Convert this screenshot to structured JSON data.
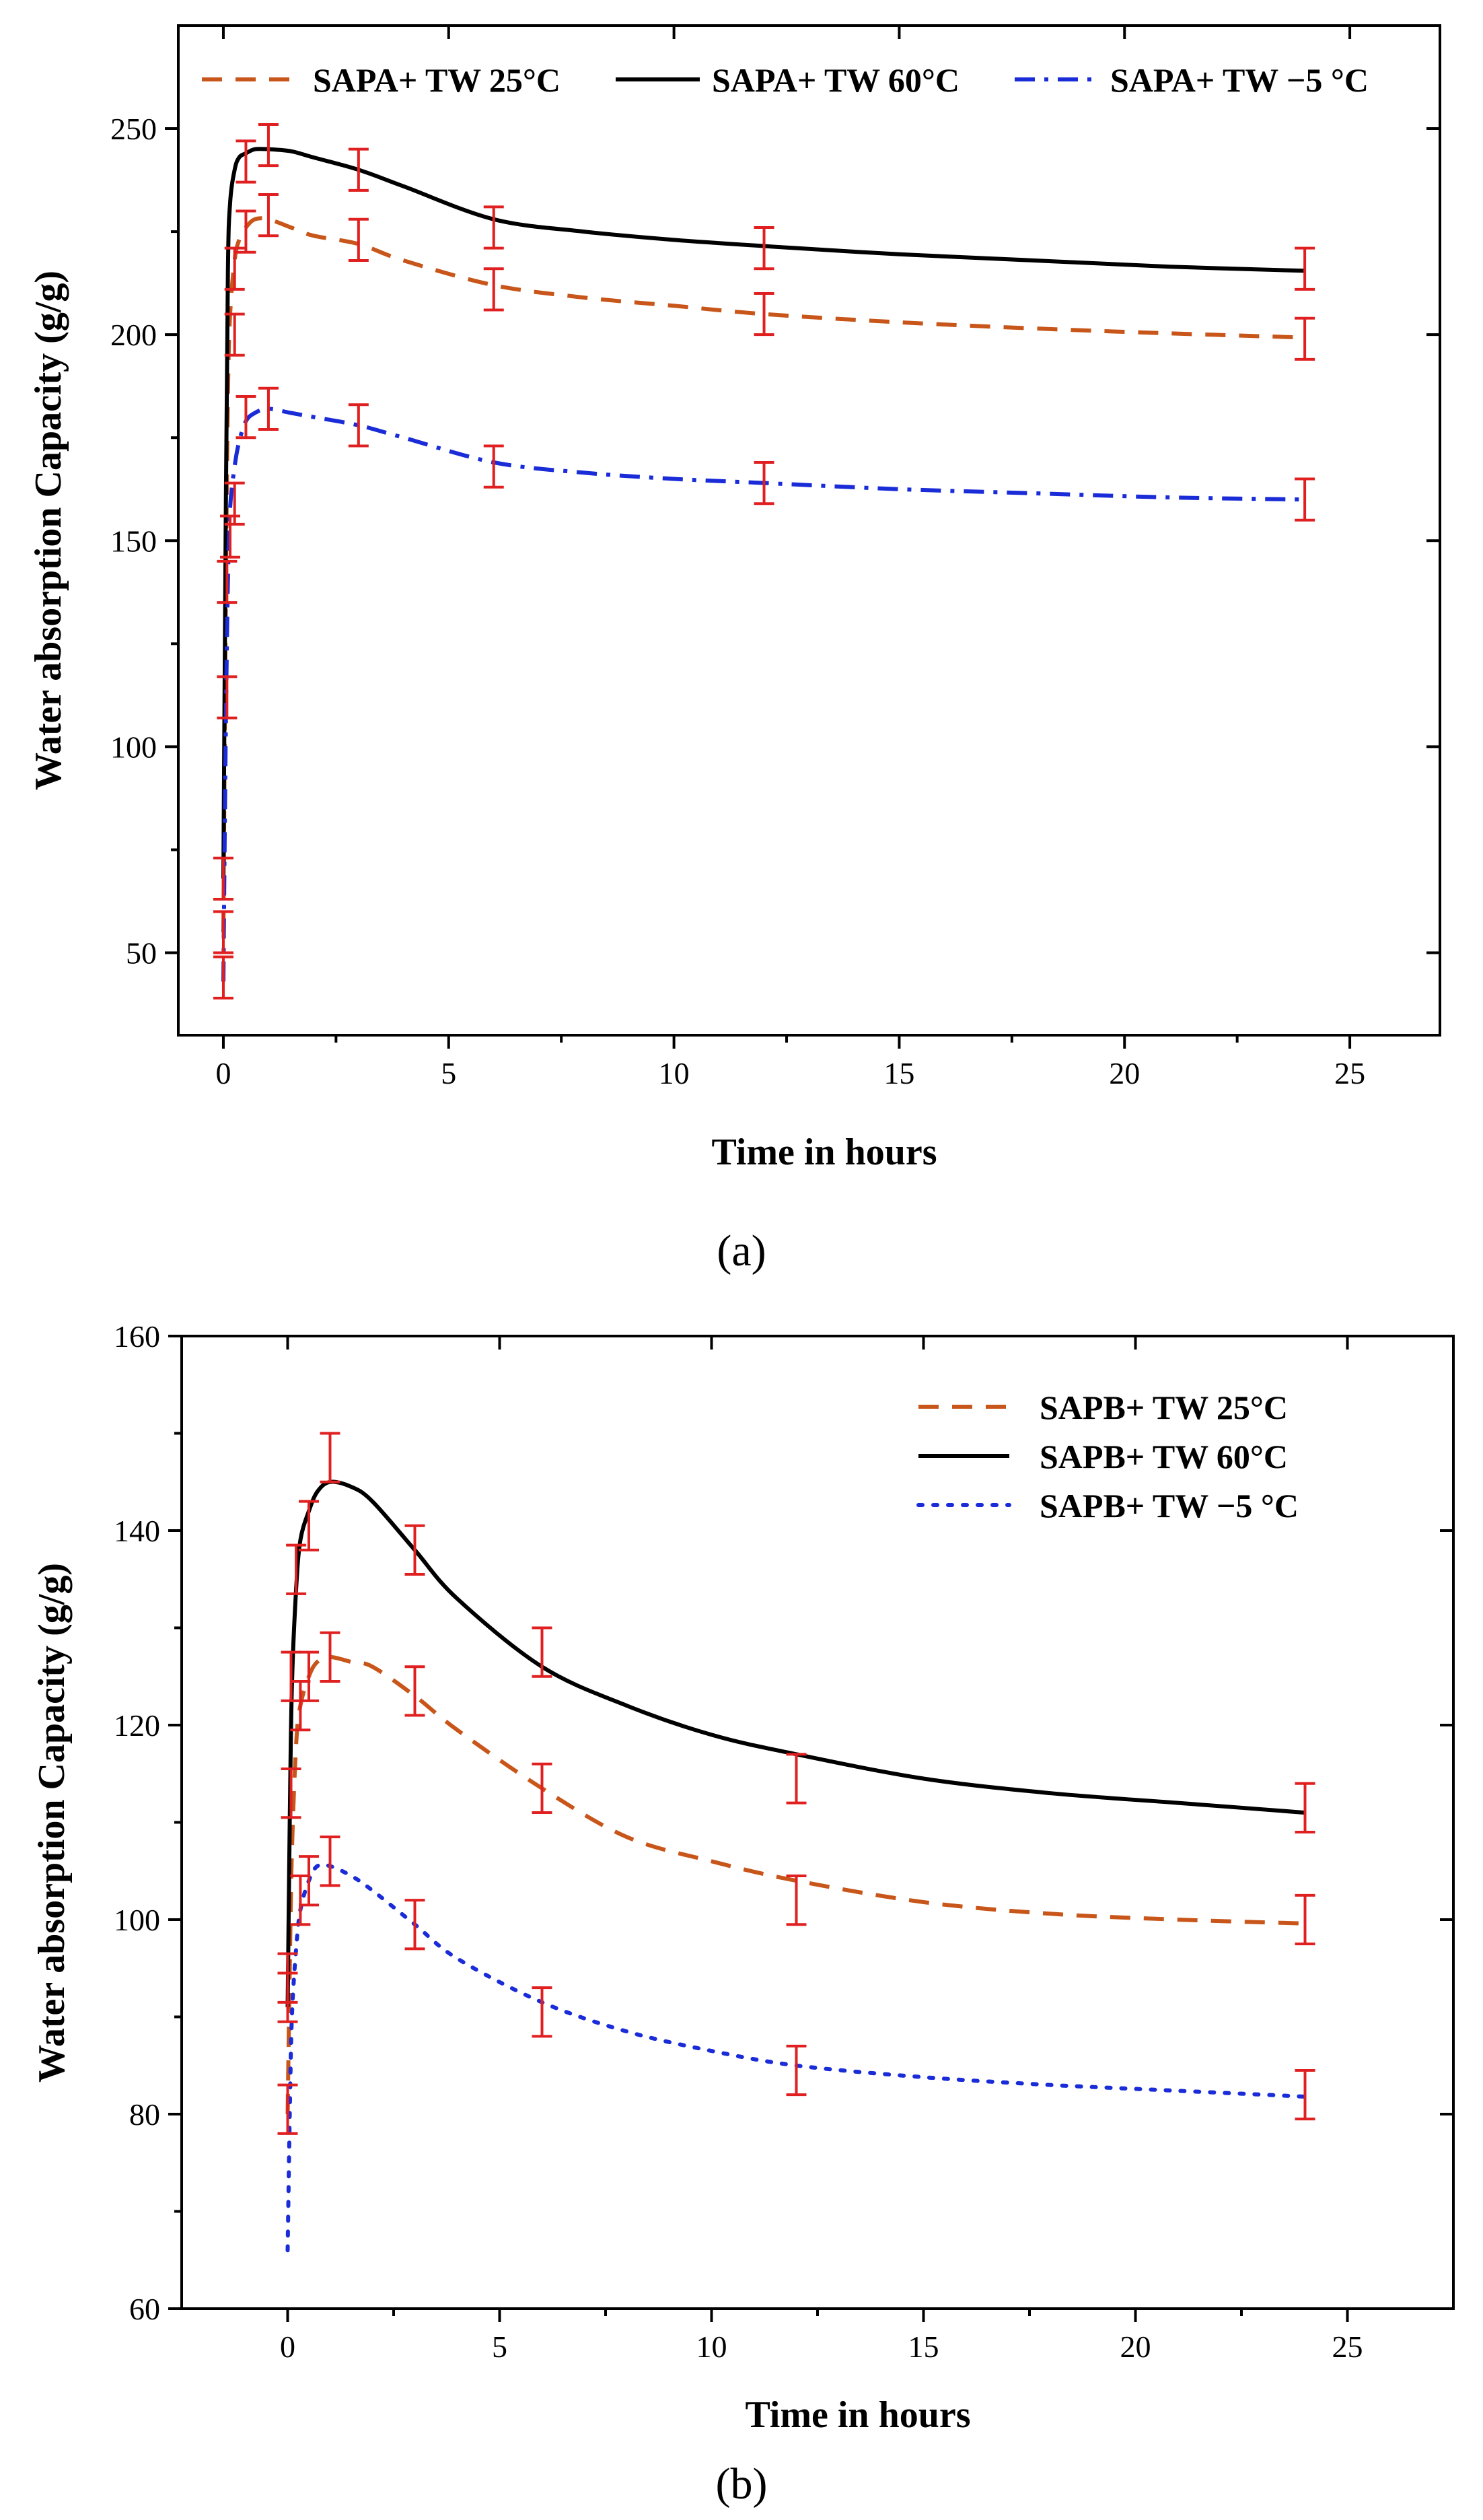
{
  "chart_data": [
    {
      "type": "line",
      "panel": "a",
      "caption": "(a)",
      "xlabel": "Time in hours",
      "ylabel": "Water absorption Capacity (g/g)",
      "xlim": [
        -1,
        27
      ],
      "ylim": [
        30,
        275
      ],
      "xticks": [
        0,
        5,
        10,
        15,
        20,
        25
      ],
      "yticks": [
        50,
        100,
        150,
        200,
        250
      ],
      "legend_position": "top",
      "error_color": "#e02020",
      "series": [
        {
          "name": "SAPA+ TW 25°C",
          "style": "dashed",
          "color": "#c8561a",
          "x": [
            0,
            0.05,
            0.1,
            0.15,
            0.25,
            0.35,
            0.5,
            0.7,
            1,
            1.5,
            2,
            3,
            4,
            6,
            8,
            10,
            12,
            15,
            18,
            21,
            24
          ],
          "y": [
            55,
            130,
            185,
            205,
            218,
            223,
            226,
            228,
            228,
            226,
            224,
            222,
            218,
            212,
            209,
            207,
            205,
            203,
            201.5,
            200.3,
            199.3
          ]
        },
        {
          "name": "SAPA+ TW 60°C",
          "style": "solid",
          "color": "#000000",
          "x": [
            0,
            0.05,
            0.1,
            0.15,
            0.25,
            0.35,
            0.5,
            0.7,
            1,
            1.5,
            2,
            3,
            4,
            6,
            8,
            10,
            12,
            15,
            18,
            21,
            24
          ],
          "y": [
            68,
            150,
            215,
            232,
            240,
            243,
            244,
            245,
            245,
            244.5,
            243,
            240,
            236,
            228,
            225,
            223,
            221.5,
            219.5,
            218,
            216.5,
            215.5
          ]
        },
        {
          "name": "SAPA+ TW −5 °C",
          "style": "dashdot",
          "color": "#1a2bd8",
          "x": [
            0,
            0.05,
            0.1,
            0.15,
            0.25,
            0.35,
            0.5,
            0.7,
            1,
            1.5,
            2,
            3,
            4,
            6,
            8,
            10,
            12,
            15,
            18,
            21,
            24
          ],
          "y": [
            43,
            100,
            140,
            158,
            168,
            174,
            179,
            181,
            182,
            181,
            180,
            178,
            175,
            169,
            166.5,
            165,
            164,
            162.5,
            161.5,
            160.5,
            160
          ]
        }
      ],
      "error_points": [
        {
          "x": 0,
          "y": 44
        },
        {
          "x": 0,
          "y": 55
        },
        {
          "x": 0,
          "y": 68
        },
        {
          "x": 0.08,
          "y": 112
        },
        {
          "x": 0.08,
          "y": 140
        },
        {
          "x": 0.15,
          "y": 151
        },
        {
          "x": 0.25,
          "y": 159
        },
        {
          "x": 0.25,
          "y": 200
        },
        {
          "x": 0.25,
          "y": 216
        },
        {
          "x": 0.5,
          "y": 180
        },
        {
          "x": 0.5,
          "y": 225
        },
        {
          "x": 0.5,
          "y": 242
        },
        {
          "x": 1,
          "y": 182
        },
        {
          "x": 1,
          "y": 229
        },
        {
          "x": 1,
          "y": 246
        },
        {
          "x": 3,
          "y": 178
        },
        {
          "x": 3,
          "y": 223
        },
        {
          "x": 3,
          "y": 240
        },
        {
          "x": 6,
          "y": 168
        },
        {
          "x": 6,
          "y": 211
        },
        {
          "x": 6,
          "y": 226
        },
        {
          "x": 12,
          "y": 164
        },
        {
          "x": 12,
          "y": 205
        },
        {
          "x": 12,
          "y": 221
        },
        {
          "x": 24,
          "y": 160
        },
        {
          "x": 24,
          "y": 199
        },
        {
          "x": 24,
          "y": 216
        }
      ]
    },
    {
      "type": "line",
      "panel": "b",
      "caption": "(b)",
      "xlabel": "Time in hours",
      "ylabel": "Water absorption Capacity (g/g)",
      "xlim": [
        -2.5,
        27.5
      ],
      "ylim": [
        60,
        160
      ],
      "xticks": [
        0,
        5,
        10,
        15,
        20,
        25
      ],
      "yticks": [
        60,
        80,
        100,
        120,
        140,
        160
      ],
      "legend_position": "top-right",
      "error_color": "#e02020",
      "series": [
        {
          "name": "SAPB+ TW 25°C",
          "style": "dashed",
          "color": "#c8561a",
          "x": [
            0,
            0.05,
            0.1,
            0.2,
            0.3,
            0.5,
            0.7,
            1,
            1.5,
            2,
            3,
            4,
            6,
            8,
            10,
            12,
            15,
            18,
            21,
            24
          ],
          "y": [
            80,
            95,
            107,
            118,
            122,
            125,
            126.5,
            127,
            126.5,
            126,
            123,
            119.5,
            113.5,
            108.5,
            106,
            104,
            101.8,
            100.6,
            100,
            99.6
          ]
        },
        {
          "name": "SAPB+ TW 60°C",
          "style": "solid",
          "color": "#000000",
          "x": [
            0,
            0.05,
            0.1,
            0.2,
            0.3,
            0.5,
            0.7,
            1,
            1.5,
            2,
            3,
            4,
            6,
            8,
            10,
            12,
            15,
            18,
            21,
            24
          ],
          "y": [
            91,
            110,
            124,
            134,
            139,
            142,
            144,
            145,
            144.5,
            143,
            138,
            133,
            126,
            122,
            119,
            117,
            114.5,
            113,
            112,
            111
          ]
        },
        {
          "name": "SAPB+ TW −5 °C",
          "style": "dotted",
          "color": "#1a2bd8",
          "x": [
            0,
            0.05,
            0.1,
            0.2,
            0.3,
            0.5,
            0.7,
            1,
            1.5,
            2,
            3,
            4,
            6,
            8,
            10,
            12,
            15,
            18,
            21,
            24
          ],
          "y": [
            66,
            80,
            90,
            97,
            101,
            104,
            105.5,
            105.5,
            104.5,
            103,
            99.5,
            96,
            91.5,
            88.5,
            86.5,
            85,
            83.8,
            83,
            82.4,
            81.8
          ]
        }
      ],
      "error_points": [
        {
          "x": 0,
          "y": 80.5
        },
        {
          "x": 0,
          "y": 92
        },
        {
          "x": 0,
          "y": 94
        },
        {
          "x": 0.08,
          "y": 113
        },
        {
          "x": 0.08,
          "y": 125
        },
        {
          "x": 0.2,
          "y": 136
        },
        {
          "x": 0.3,
          "y": 102
        },
        {
          "x": 0.3,
          "y": 122
        },
        {
          "x": 0.5,
          "y": 104
        },
        {
          "x": 0.5,
          "y": 125
        },
        {
          "x": 0.5,
          "y": 140.5
        },
        {
          "x": 1,
          "y": 106
        },
        {
          "x": 1,
          "y": 127
        },
        {
          "x": 1,
          "y": 147.5
        },
        {
          "x": 3,
          "y": 99.5
        },
        {
          "x": 3,
          "y": 123.5
        },
        {
          "x": 3,
          "y": 138
        },
        {
          "x": 6,
          "y": 90.5
        },
        {
          "x": 6,
          "y": 113.5
        },
        {
          "x": 6,
          "y": 127.5
        },
        {
          "x": 12,
          "y": 84.5
        },
        {
          "x": 12,
          "y": 102
        },
        {
          "x": 12,
          "y": 114.5
        },
        {
          "x": 24,
          "y": 82
        },
        {
          "x": 24,
          "y": 100
        },
        {
          "x": 24,
          "y": 111.5
        }
      ]
    }
  ]
}
